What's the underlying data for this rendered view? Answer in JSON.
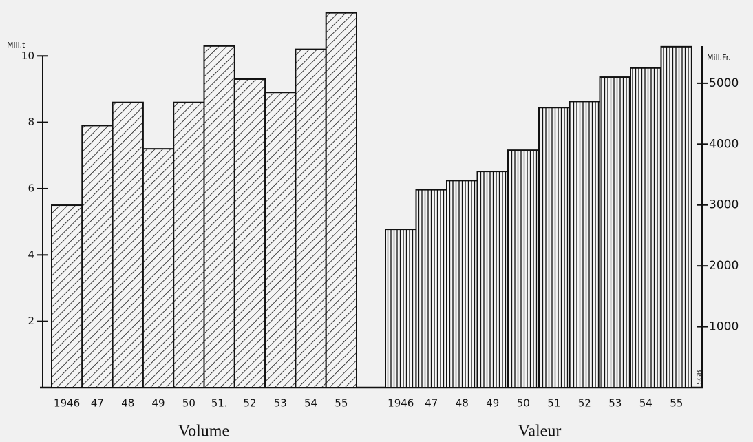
{
  "chart_data": [
    {
      "type": "bar",
      "xlabel": "Volume",
      "ylabel": "Mill.t",
      "categories": [
        "1946",
        "47",
        "48",
        "49",
        "50",
        "51.",
        "52",
        "53",
        "54",
        "55"
      ],
      "values": [
        5.5,
        7.9,
        8.6,
        7.2,
        8.6,
        10.3,
        9.3,
        8.9,
        10.2,
        11.3
      ],
      "ylim": [
        0,
        11.5
      ],
      "yticks": [
        2,
        4,
        6,
        8,
        10
      ],
      "color": "#111111",
      "pattern": "diagonal"
    },
    {
      "type": "bar",
      "xlabel": "Valeur",
      "ylabel": "Mill.Fr.",
      "annotation": "SGB",
      "categories": [
        "1946",
        "47",
        "48",
        "49",
        "50",
        "51",
        "52",
        "53",
        "54",
        "55"
      ],
      "values": [
        2600,
        3250,
        3400,
        3550,
        3900,
        4600,
        4700,
        5100,
        5250,
        5600
      ],
      "ylim": [
        0,
        5700
      ],
      "yticks": [
        1000,
        2000,
        3000,
        4000,
        5000
      ],
      "color": "#111111",
      "pattern": "vertical"
    }
  ]
}
